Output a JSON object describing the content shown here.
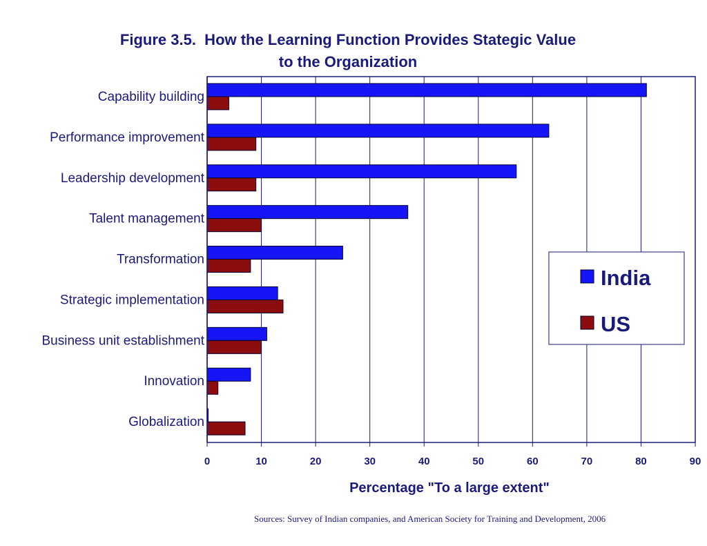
{
  "chart_data": {
    "type": "bar",
    "orientation": "horizontal",
    "title": [
      "Figure 3.5.  How the Learning Function Provides Stategic Value",
      "to the Organization"
    ],
    "xlabel": "Percentage \"To a large extent\"",
    "ylabel": "",
    "categories": [
      "Capability building",
      "Performance improvement",
      "Leadership development",
      "Talent management",
      "Transformation",
      "Strategic implementation",
      "Business unit establishment",
      "Innovation",
      "Globalization"
    ],
    "series": [
      {
        "name": "India",
        "color": "#1515f5",
        "values": [
          81,
          63,
          57,
          37,
          25,
          13,
          11,
          8,
          0
        ]
      },
      {
        "name": "US",
        "color": "#8b0d0d",
        "values": [
          4,
          9,
          9,
          10,
          8,
          14,
          10,
          2,
          7
        ]
      }
    ],
    "xlim": [
      0,
      90
    ],
    "xticks": [
      "0",
      "10",
      "20",
      "30",
      "40",
      "50",
      "60",
      "70",
      "80",
      "90"
    ],
    "grid": true,
    "legend_position": "right",
    "source": "Sources:  Survey of Indian companies, and American Society for Training and Development, 2006"
  }
}
